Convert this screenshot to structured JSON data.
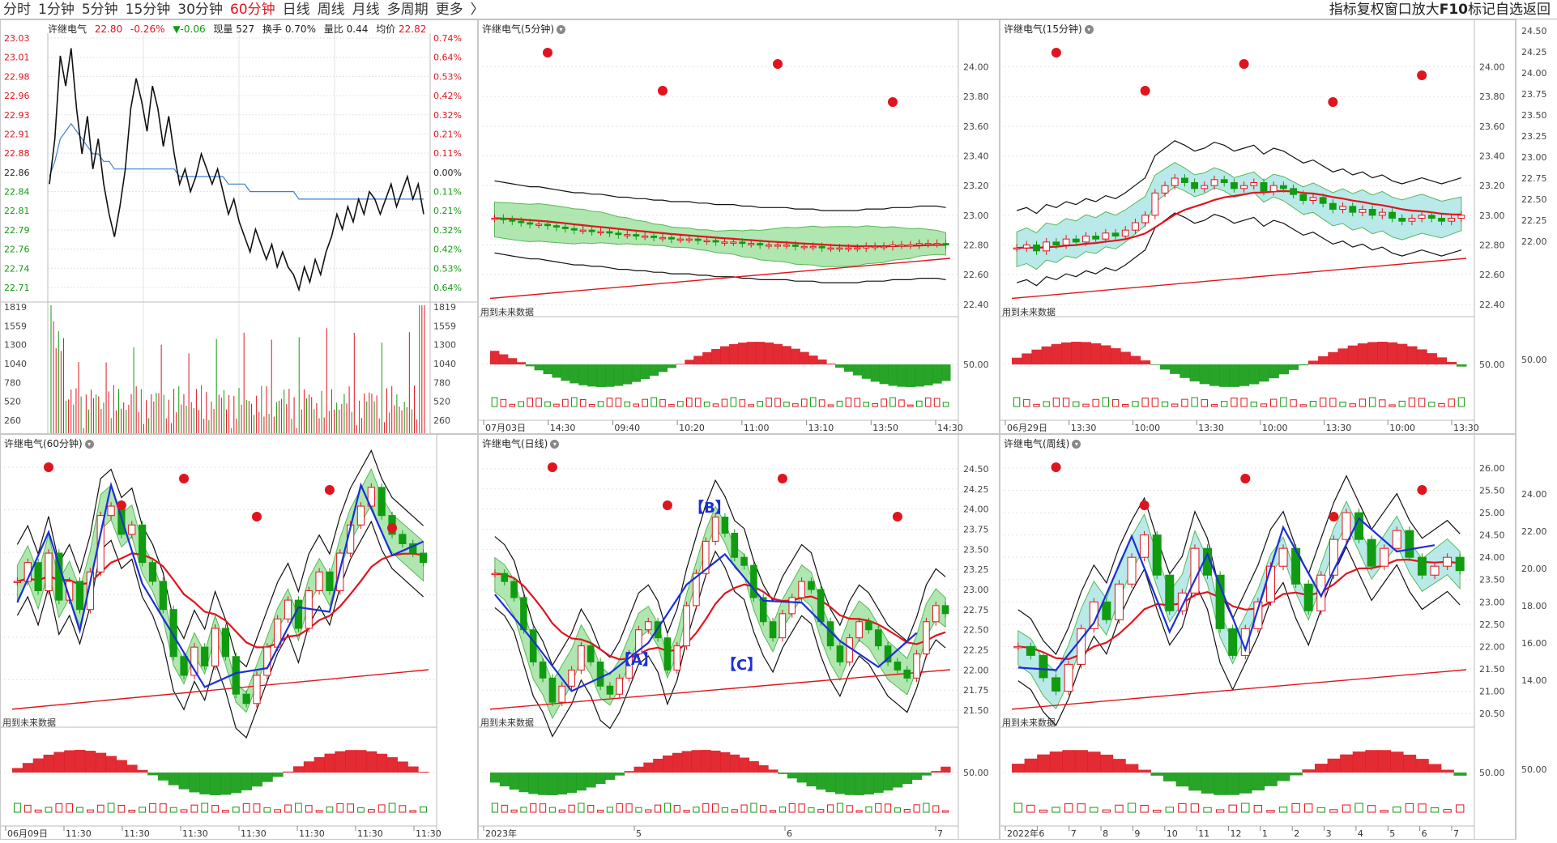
{
  "toolbar": {
    "periods": [
      "分时",
      "1分钟",
      "5分钟",
      "15分钟",
      "30分钟",
      "60分钟",
      "日线",
      "周线",
      "月线",
      "多周期",
      "更多"
    ],
    "active": "60分钟",
    "more_chevron": "〉",
    "right_items": [
      "指标",
      "复权",
      "窗口放大",
      "F10",
      "标记",
      "自选",
      "返回"
    ]
  },
  "stock_name": "许继电气",
  "colors": {
    "up": "#e0141e",
    "down": "#119b11",
    "avg": "#3a7fd5",
    "blue": "#1a2fd8",
    "band_green": "#8fdc8f",
    "band_cyan": "#9ee0e0",
    "grid": "#e3e3e3"
  },
  "panels": {
    "intraday": {
      "title": "许继电气",
      "last": "22.80",
      "chg_pct": "-0.26%",
      "chg": "▼-0.06",
      "vol_label": "现量",
      "vol": "527",
      "turnover_label": "换手",
      "turnover": "0.70%",
      "ratio_label": "量比",
      "ratio": "0.44",
      "avg_label": "均价",
      "avg": "22.82"
    },
    "p5m": {
      "title": "许继电气(5分钟)",
      "future": "用到未来数据"
    },
    "p15m": {
      "title": "许继电气(15分钟)",
      "future": "用到未来数据"
    },
    "p60m": {
      "title": "许继电气(60分钟)",
      "future": "用到未来数据"
    },
    "pday": {
      "title": "许继电气(日线)",
      "future": "用到未来数据",
      "wave_labels": [
        "【A】",
        "【B】",
        "【C】"
      ]
    },
    "pweek": {
      "title": "许继电气(周线)",
      "future": "用到未来数据"
    }
  },
  "chart_data": [
    {
      "type": "line",
      "name": "intraday",
      "y_left": [
        "23.03",
        "23.01",
        "22.98",
        "22.96",
        "22.93",
        "22.91",
        "22.88",
        "22.86",
        "22.84",
        "22.81",
        "22.79",
        "22.76",
        "22.74",
        "22.71"
      ],
      "y_right": [
        "0.74%",
        "0.64%",
        "0.53%",
        "0.42%",
        "0.32%",
        "0.21%",
        "0.11%",
        "0.00%",
        "0.11%",
        "0.21%",
        "0.32%",
        "0.42%",
        "0.53%",
        "0.64%"
      ],
      "vol_axis": [
        "1819",
        "1559",
        "1300",
        "1040",
        "780",
        "520",
        "260"
      ],
      "ylim": [
        22.69,
        23.04
      ],
      "price": [
        22.84,
        22.9,
        23.01,
        22.97,
        23.02,
        22.94,
        22.88,
        22.93,
        22.86,
        22.9,
        22.84,
        22.8,
        22.77,
        22.81,
        22.86,
        22.94,
        22.98,
        22.95,
        22.91,
        22.97,
        22.94,
        22.89,
        22.93,
        22.88,
        22.84,
        22.86,
        22.83,
        22.85,
        22.88,
        22.86,
        22.84,
        22.86,
        22.83,
        22.8,
        22.82,
        22.79,
        22.77,
        22.75,
        22.78,
        22.76,
        22.74,
        22.76,
        22.73,
        22.75,
        22.73,
        22.72,
        22.7,
        22.73,
        22.71,
        22.74,
        22.72,
        22.75,
        22.77,
        22.8,
        22.78,
        22.81,
        22.79,
        22.82,
        22.8,
        22.83,
        22.82,
        22.8,
        22.82,
        22.84,
        22.81,
        22.83,
        22.85,
        22.82,
        22.84,
        22.8
      ],
      "avg": [
        22.85,
        22.87,
        22.9,
        22.91,
        22.92,
        22.91,
        22.9,
        22.89,
        22.88,
        22.88,
        22.87,
        22.87,
        22.86,
        22.86,
        22.86,
        22.86,
        22.86,
        22.86,
        22.86,
        22.86,
        22.86,
        22.86,
        22.86,
        22.86,
        22.85,
        22.85,
        22.85,
        22.85,
        22.85,
        22.85,
        22.85,
        22.85,
        22.85,
        22.84,
        22.84,
        22.84,
        22.84,
        22.83,
        22.83,
        22.83,
        22.83,
        22.83,
        22.83,
        22.83,
        22.83,
        22.83,
        22.82,
        22.82,
        22.82,
        22.82,
        22.82,
        22.82,
        22.82,
        22.82,
        22.82,
        22.82,
        22.82,
        22.82,
        22.82,
        22.82,
        22.82,
        22.82,
        22.82,
        22.82,
        22.82,
        22.82,
        22.82,
        22.82,
        22.82,
        22.82
      ]
    },
    {
      "type": "bar",
      "name": "5分钟",
      "y_ticks": [
        "24.00",
        "23.80",
        "23.60",
        "23.40",
        "23.20",
        "23.00",
        "22.80",
        "22.60",
        "22.40"
      ],
      "ylim": [
        22.35,
        24.15
      ],
      "x_ticks": [
        "07月03日",
        "14:30",
        "09:40",
        "10:20",
        "11:00",
        "13:10",
        "13:50",
        "14:30"
      ],
      "close": [
        22.98,
        22.97,
        22.96,
        22.95,
        22.94,
        22.94,
        22.93,
        22.92,
        22.91,
        22.9,
        22.9,
        22.89,
        22.89,
        22.88,
        22.87,
        22.87,
        22.86,
        22.86,
        22.85,
        22.85,
        22.84,
        22.84,
        22.84,
        22.83,
        22.83,
        22.82,
        22.82,
        22.82,
        22.81,
        22.81,
        22.8,
        22.8,
        22.8,
        22.8,
        22.79,
        22.79,
        22.79,
        22.78,
        22.78,
        22.78,
        22.78,
        22.78,
        22.79,
        22.79,
        22.79,
        22.8,
        22.8,
        22.8,
        22.81,
        22.81,
        22.81,
        22.8
      ],
      "osc_mid": "50.00"
    },
    {
      "type": "bar",
      "name": "15分钟",
      "y_ticks": [
        "24.00",
        "23.80",
        "23.60",
        "23.40",
        "23.20",
        "23.00",
        "22.80",
        "22.60",
        "22.40"
      ],
      "ylim": [
        22.35,
        24.15
      ],
      "x_ticks": [
        "06月29日",
        "13:30",
        "10:00",
        "13:30",
        "10:00",
        "13:30",
        "10:00",
        "13:30"
      ],
      "close": [
        22.78,
        22.8,
        22.76,
        22.82,
        22.8,
        22.84,
        22.82,
        22.86,
        22.84,
        22.88,
        22.86,
        22.9,
        22.95,
        23.0,
        23.15,
        23.2,
        23.25,
        23.22,
        23.18,
        23.2,
        23.24,
        23.22,
        23.18,
        23.2,
        23.22,
        23.16,
        23.2,
        23.18,
        23.14,
        23.1,
        23.12,
        23.08,
        23.04,
        23.06,
        23.02,
        23.04,
        23.0,
        23.02,
        22.98,
        22.96,
        22.98,
        23.0,
        22.98,
        22.96,
        22.98,
        23.0
      ],
      "osc_mid": "50.00"
    },
    {
      "type": "bar",
      "name": "60分钟",
      "x_ticks": [
        "06月09日",
        "11:30",
        "11:30",
        "11:30",
        "11:30",
        "11:30",
        "11:30",
        "11:30"
      ],
      "close": [
        22.95,
        23.05,
        22.9,
        23.1,
        22.85,
        22.95,
        22.8,
        23.0,
        23.3,
        23.35,
        23.2,
        23.25,
        23.05,
        22.95,
        22.8,
        22.55,
        22.45,
        22.6,
        22.5,
        22.7,
        22.55,
        22.35,
        22.3,
        22.45,
        22.6,
        22.75,
        22.85,
        22.7,
        22.9,
        23.0,
        22.9,
        23.1,
        23.25,
        23.35,
        23.45,
        23.3,
        23.2,
        23.15,
        23.1,
        23.05
      ],
      "ylim": [
        22.2,
        23.6
      ]
    },
    {
      "type": "bar",
      "name": "日线",
      "y_ticks": [
        "24.50",
        "24.25",
        "24.00",
        "23.75",
        "23.50",
        "23.25",
        "23.00",
        "22.75",
        "22.50",
        "22.25",
        "22.00",
        "21.75",
        "21.50"
      ],
      "ylim": [
        21.35,
        24.62
      ],
      "x_ticks": [
        "2023年",
        "5",
        "6",
        "7"
      ],
      "close": [
        23.2,
        23.1,
        22.9,
        22.5,
        22.1,
        21.9,
        21.6,
        21.8,
        22.0,
        22.3,
        22.1,
        21.8,
        21.7,
        21.9,
        22.2,
        22.5,
        22.6,
        22.4,
        22.0,
        22.3,
        22.8,
        23.2,
        23.6,
        23.9,
        23.7,
        23.4,
        23.3,
        22.9,
        22.6,
        22.4,
        22.7,
        22.9,
        23.1,
        23.0,
        22.6,
        22.3,
        22.1,
        22.4,
        22.6,
        22.5,
        22.3,
        22.1,
        22.0,
        21.9,
        22.2,
        22.6,
        22.8,
        22.7
      ],
      "osc_mid": "50.00"
    },
    {
      "type": "bar",
      "name": "周线",
      "y_ticks": [
        "26.00",
        "25.50",
        "25.00",
        "24.50",
        "24.00",
        "23.50",
        "23.00",
        "22.50",
        "22.00",
        "21.50",
        "21.00",
        "20.50"
      ],
      "ylim": [
        20.3,
        26.2
      ],
      "x_ticks": [
        "2022年",
        "6",
        "7",
        "8",
        "9",
        "10",
        "11",
        "12",
        "1",
        "2",
        "3",
        "4",
        "5",
        "6",
        "7"
      ],
      "close": [
        22.0,
        21.8,
        21.3,
        21.0,
        21.6,
        22.4,
        23.0,
        22.6,
        23.4,
        24.0,
        24.5,
        23.6,
        22.8,
        23.2,
        24.2,
        23.6,
        22.4,
        21.8,
        22.4,
        23.0,
        23.8,
        24.2,
        23.4,
        22.8,
        23.6,
        24.4,
        25.0,
        24.4,
        23.8,
        24.2,
        24.6,
        24.0,
        23.6,
        23.8,
        24.0,
        23.7
      ],
      "osc_mid": "50.00"
    }
  ],
  "right_axis": [
    "24.50",
    "24.25",
    "24.00",
    "23.75",
    "23.50",
    "23.25",
    "23.00",
    "22.75",
    "22.50",
    "22.25",
    "22.00",
    "50.00",
    "24.00",
    "22.00",
    "20.00",
    "18.00",
    "16.00",
    "14.00",
    "50.00"
  ]
}
